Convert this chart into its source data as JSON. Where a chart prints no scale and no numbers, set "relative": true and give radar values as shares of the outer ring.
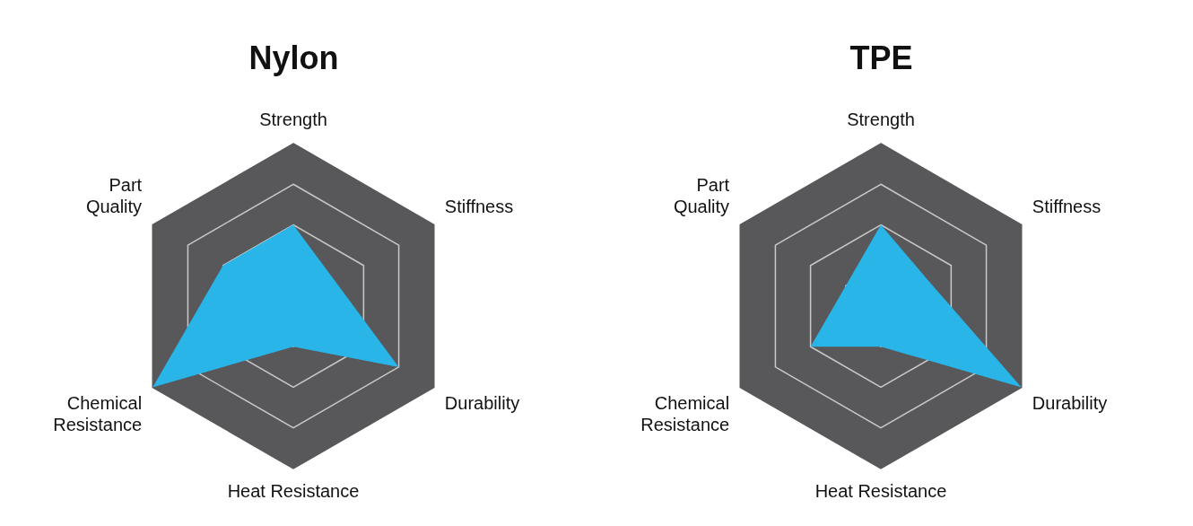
{
  "chart_data": [
    {
      "type": "radar",
      "title": "Nylon",
      "categories": [
        "Strength",
        "Stiffness",
        "Durability",
        "Heat Resistance",
        "Chemical Resistance",
        "Part Quality"
      ],
      "relative": true,
      "grid": true,
      "series": [
        {
          "color": "#29b5e8",
          "values": [
            0.5,
            0.3,
            0.75,
            0.25,
            1,
            0.5
          ]
        }
      ]
    },
    {
      "type": "radar",
      "title": "TPE",
      "categories": [
        "Strength",
        "Stiffness",
        "Durability",
        "Heat Resistance",
        "Chemical Resistance",
        "Part Quality"
      ],
      "relative": true,
      "grid": true,
      "series": [
        {
          "color": "#29b5e8",
          "values": [
            0.5,
            0.33,
            1,
            0.25,
            0.5,
            0.25
          ]
        }
      ]
    }
  ]
}
